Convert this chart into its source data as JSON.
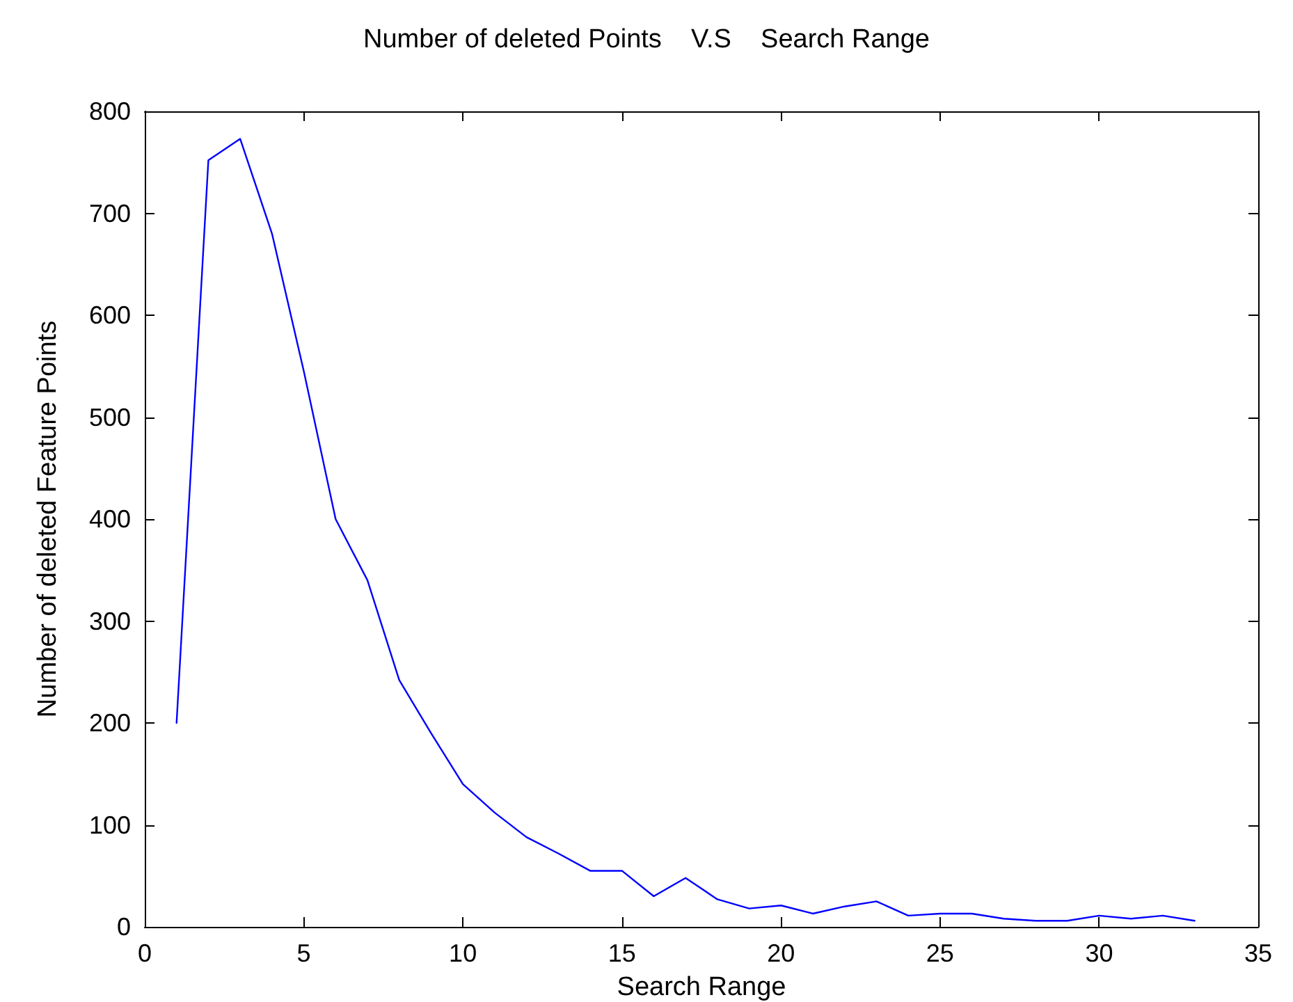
{
  "chart_data": {
    "type": "line",
    "title": "Number of deleted Points    V.S    Search Range",
    "xlabel": "Search Range",
    "ylabel": "Number of deleted Feature Points",
    "x": [
      1,
      2,
      3,
      4,
      5,
      6,
      7,
      8,
      9,
      10,
      11,
      12,
      13,
      14,
      15,
      16,
      17,
      18,
      19,
      20,
      21,
      22,
      23,
      24,
      25,
      26,
      27,
      28,
      29,
      30,
      31,
      32,
      33
    ],
    "series": [
      {
        "color": "#0000ff",
        "values": [
          200,
          752,
          773,
          680,
          545,
          400,
          340,
          242,
          190,
          140,
          112,
          88,
          72,
          55,
          55,
          30,
          48,
          27,
          18,
          21,
          13,
          20,
          25,
          11,
          13,
          13,
          8,
          6,
          6,
          11,
          8,
          11,
          6
        ]
      }
    ],
    "xlim": [
      0,
      35
    ],
    "xticks": [
      0,
      5,
      10,
      15,
      20,
      25,
      30,
      35
    ],
    "ylim": [
      0,
      800
    ],
    "yticks": [
      0,
      100,
      200,
      300,
      400,
      500,
      600,
      700,
      800
    ],
    "grid": false,
    "marker": "none",
    "line_style": "solid"
  }
}
